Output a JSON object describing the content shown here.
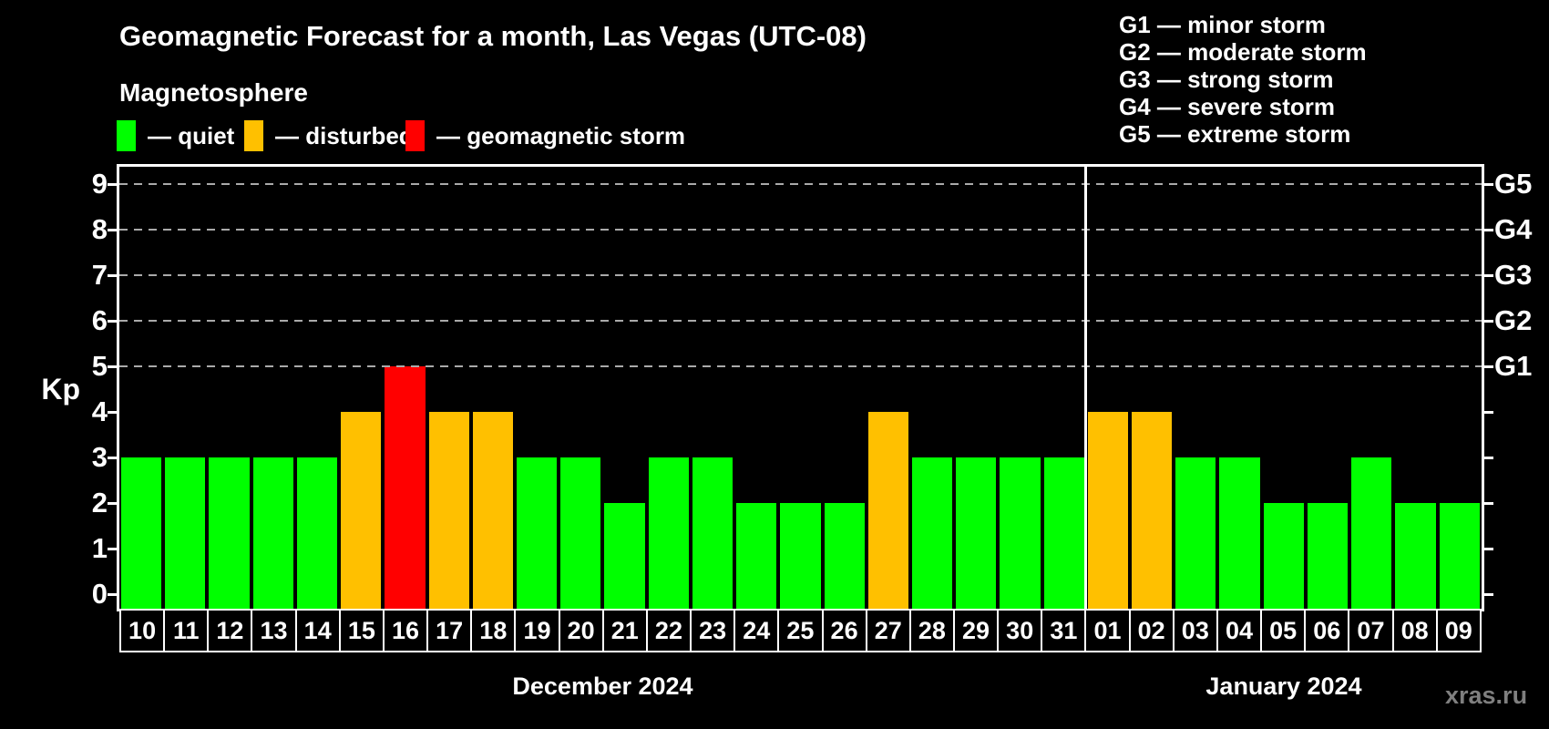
{
  "header": {
    "title": "Geomagnetic Forecast for a month, Las Vegas (UTC-08)",
    "subtitle": "Magnetosphere",
    "legend": [
      {
        "label": "— quiet",
        "status": "quiet"
      },
      {
        "label": "— disturbed",
        "status": "disturbed"
      },
      {
        "label": "— geomagnetic storm",
        "status": "storm"
      }
    ]
  },
  "g_legend": [
    "G1 — minor storm",
    "G2 — moderate storm",
    "G3 — strong storm",
    "G4 — severe storm",
    "G5 — extreme storm"
  ],
  "palette": {
    "quiet": "#00ff00",
    "disturbed": "#ffc000",
    "storm": "#ff0000",
    "grid": "#aaaaaa",
    "axis": "#ffffff",
    "background": "#000000"
  },
  "watermark": "xras.ru",
  "chart_data": {
    "type": "bar",
    "ylabel": "Kp",
    "ylim": [
      0,
      9.5
    ],
    "y_ticks": [
      0,
      1,
      2,
      3,
      4,
      5,
      6,
      7,
      8,
      9
    ],
    "gridlines_at": [
      5,
      6,
      7,
      8,
      9
    ],
    "grid": "dashed horizontal at storm levels only",
    "legend_position": "top",
    "right_axis": [
      {
        "kp": 5,
        "label": "G1"
      },
      {
        "kp": 6,
        "label": "G2"
      },
      {
        "kp": 7,
        "label": "G3"
      },
      {
        "kp": 8,
        "label": "G4"
      },
      {
        "kp": 9,
        "label": "G5"
      }
    ],
    "months": [
      {
        "label": "December 2024",
        "days": 22
      },
      {
        "label": "January 2024",
        "days": 9
      }
    ],
    "days": [
      {
        "date": "10",
        "kp": 3,
        "status": "quiet"
      },
      {
        "date": "11",
        "kp": 3,
        "status": "quiet"
      },
      {
        "date": "12",
        "kp": 3,
        "status": "quiet"
      },
      {
        "date": "13",
        "kp": 3,
        "status": "quiet"
      },
      {
        "date": "14",
        "kp": 3,
        "status": "quiet"
      },
      {
        "date": "15",
        "kp": 4,
        "status": "disturbed"
      },
      {
        "date": "16",
        "kp": 5,
        "status": "storm"
      },
      {
        "date": "17",
        "kp": 4,
        "status": "disturbed"
      },
      {
        "date": "18",
        "kp": 4,
        "status": "disturbed"
      },
      {
        "date": "19",
        "kp": 3,
        "status": "quiet"
      },
      {
        "date": "20",
        "kp": 3,
        "status": "quiet"
      },
      {
        "date": "21",
        "kp": 2,
        "status": "quiet"
      },
      {
        "date": "22",
        "kp": 3,
        "status": "quiet"
      },
      {
        "date": "23",
        "kp": 3,
        "status": "quiet"
      },
      {
        "date": "24",
        "kp": 2,
        "status": "quiet"
      },
      {
        "date": "25",
        "kp": 2,
        "status": "quiet"
      },
      {
        "date": "26",
        "kp": 2,
        "status": "quiet"
      },
      {
        "date": "27",
        "kp": 4,
        "status": "disturbed"
      },
      {
        "date": "28",
        "kp": 3,
        "status": "quiet"
      },
      {
        "date": "29",
        "kp": 3,
        "status": "quiet"
      },
      {
        "date": "30",
        "kp": 3,
        "status": "quiet"
      },
      {
        "date": "31",
        "kp": 3,
        "status": "quiet"
      },
      {
        "date": "01",
        "kp": 4,
        "status": "disturbed"
      },
      {
        "date": "02",
        "kp": 4,
        "status": "disturbed"
      },
      {
        "date": "03",
        "kp": 3,
        "status": "quiet"
      },
      {
        "date": "04",
        "kp": 3,
        "status": "quiet"
      },
      {
        "date": "05",
        "kp": 2,
        "status": "quiet"
      },
      {
        "date": "06",
        "kp": 2,
        "status": "quiet"
      },
      {
        "date": "07",
        "kp": 3,
        "status": "quiet"
      },
      {
        "date": "08",
        "kp": 2,
        "status": "quiet"
      },
      {
        "date": "09",
        "kp": 2,
        "status": "quiet"
      }
    ]
  }
}
